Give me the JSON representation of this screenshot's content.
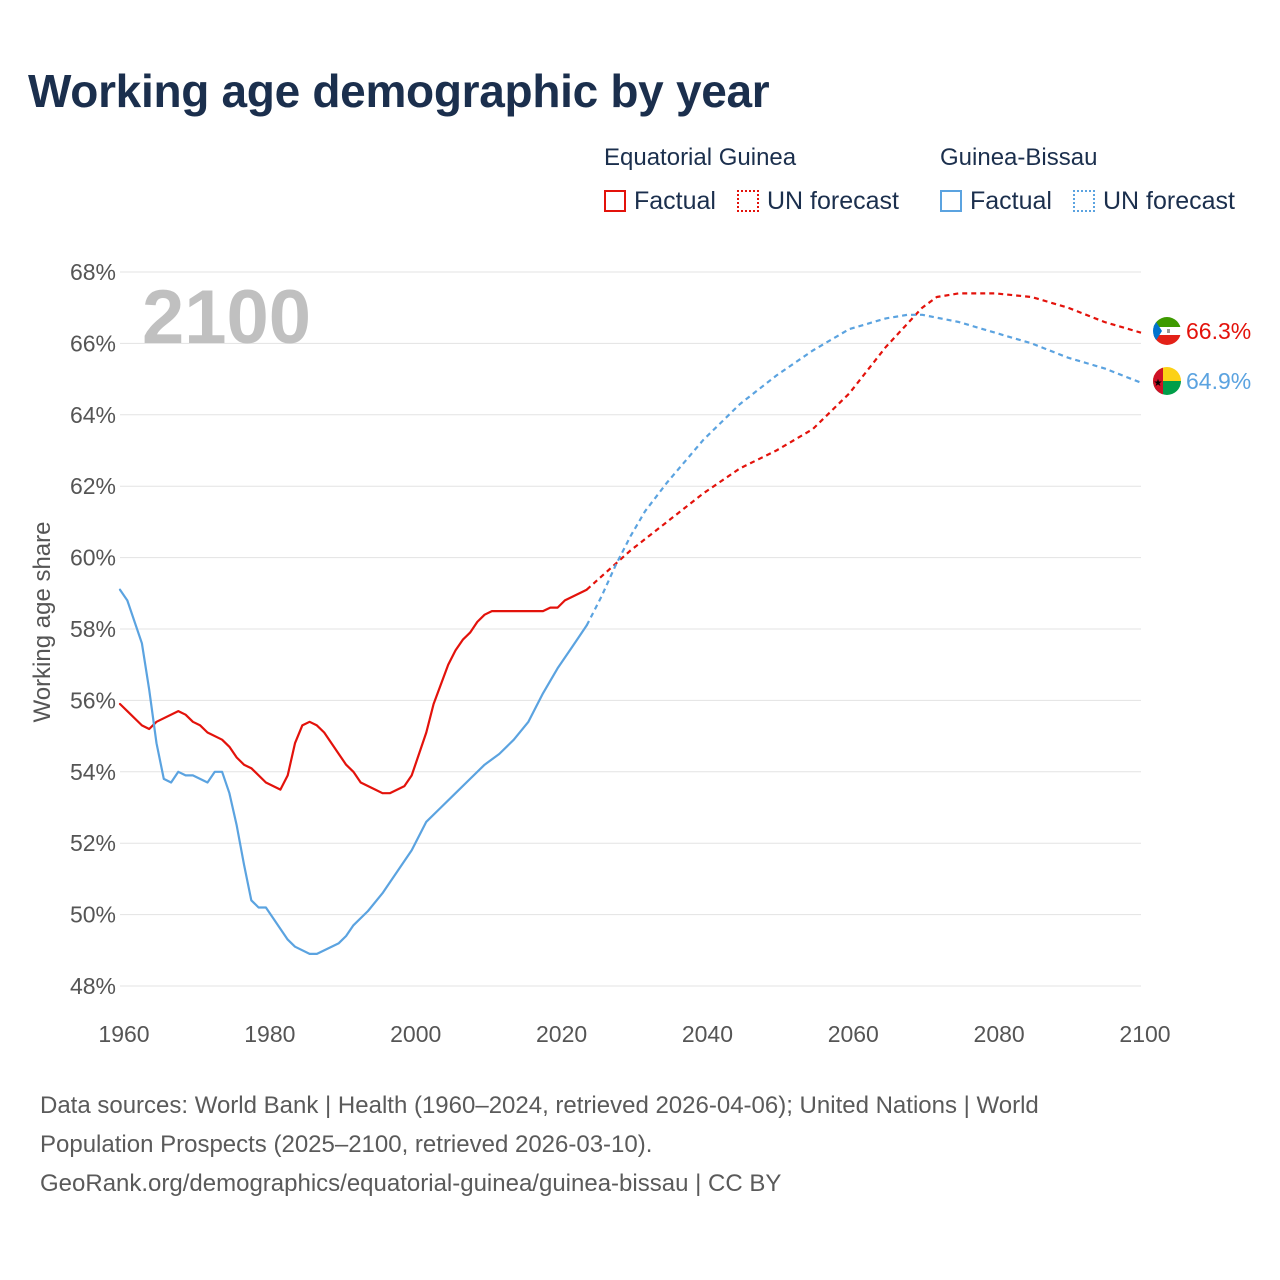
{
  "title": "Working age demographic by year",
  "legend": {
    "groups": [
      {
        "country": "Equatorial Guinea",
        "color": "#e3120b",
        "factual_label": "Factual",
        "forecast_label": "UN forecast"
      },
      {
        "country": "Guinea-Bissau",
        "color": "#5ba3e0",
        "factual_label": "Factual",
        "forecast_label": "UN forecast"
      }
    ]
  },
  "chart_data": {
    "type": "line",
    "title": "Working age demographic by year",
    "xlabel": "",
    "ylabel": "Working age share",
    "xlim": [
      1960,
      2100
    ],
    "ylim": [
      48,
      68
    ],
    "x_ticks": [
      1960,
      1980,
      2000,
      2020,
      2040,
      2060,
      2080,
      2100
    ],
    "x_tick_labels": [
      "1960",
      "1980",
      "2000",
      "2020",
      "2040",
      "2060",
      "2080",
      "2100"
    ],
    "y_ticks": [
      48,
      50,
      52,
      54,
      56,
      58,
      60,
      62,
      64,
      66,
      68
    ],
    "y_tick_labels": [
      "48%",
      "50%",
      "52%",
      "54%",
      "56%",
      "58%",
      "60%",
      "62%",
      "64%",
      "66%",
      "68%"
    ],
    "year_watermark": "2100",
    "grid": true,
    "series": [
      {
        "name": "Equatorial Guinea",
        "color": "#e3120b",
        "end_label": "66.3%",
        "factual": {
          "x": [
            1960,
            1963,
            1964,
            1965,
            1968,
            1969,
            1970,
            1971,
            1972,
            1974,
            1975,
            1976,
            1977,
            1978,
            1980,
            1982,
            1983,
            1984,
            1985,
            1986,
            1987,
            1988,
            1990,
            1991,
            1992,
            1993,
            1995,
            1996,
            1997,
            1999,
            2000,
            2002,
            2003,
            2005,
            2006,
            2007,
            2008,
            2009,
            2010,
            2011,
            2018,
            2019,
            2020,
            2021,
            2024
          ],
          "y": [
            55.9,
            55.3,
            55.2,
            55.4,
            55.7,
            55.6,
            55.4,
            55.3,
            55.1,
            54.9,
            54.7,
            54.4,
            54.2,
            54.1,
            53.7,
            53.5,
            53.9,
            54.8,
            55.3,
            55.4,
            55.3,
            55.1,
            54.5,
            54.2,
            54.0,
            53.7,
            53.5,
            53.4,
            53.4,
            53.6,
            53.9,
            55.1,
            55.9,
            57.0,
            57.4,
            57.7,
            57.9,
            58.2,
            58.4,
            58.5,
            58.5,
            58.6,
            58.6,
            58.8,
            59.1
          ]
        },
        "forecast": {
          "x": [
            2024,
            2030,
            2035,
            2040,
            2045,
            2050,
            2055,
            2060,
            2065,
            2070,
            2072,
            2075,
            2080,
            2085,
            2090,
            2095,
            2100
          ],
          "y": [
            59.1,
            60.2,
            61.0,
            61.8,
            62.5,
            63.0,
            63.6,
            64.6,
            65.9,
            67.0,
            67.3,
            67.4,
            67.4,
            67.3,
            67.0,
            66.6,
            66.3
          ]
        }
      },
      {
        "name": "Guinea-Bissau",
        "color": "#5ba3e0",
        "end_label": "64.9%",
        "factual": {
          "x": [
            1960,
            1961,
            1963,
            1964,
            1965,
            1966,
            1967,
            1968,
            1969,
            1970,
            1972,
            1973,
            1974,
            1975,
            1976,
            1977,
            1978,
            1979,
            1980,
            1982,
            1983,
            1984,
            1986,
            1987,
            1990,
            1991,
            1992,
            1994,
            1996,
            1998,
            2000,
            2002,
            2004,
            2006,
            2008,
            2010,
            2012,
            2014,
            2016,
            2018,
            2020,
            2022,
            2024
          ],
          "y": [
            59.1,
            58.8,
            57.6,
            56.3,
            54.8,
            53.8,
            53.7,
            54.0,
            53.9,
            53.9,
            53.7,
            54.0,
            54.0,
            53.4,
            52.5,
            51.4,
            50.4,
            50.2,
            50.2,
            49.6,
            49.3,
            49.1,
            48.9,
            48.9,
            49.2,
            49.4,
            49.7,
            50.1,
            50.6,
            51.2,
            51.8,
            52.6,
            53.0,
            53.4,
            53.8,
            54.2,
            54.5,
            54.9,
            55.4,
            56.2,
            56.9,
            57.5,
            58.1
          ]
        },
        "forecast": {
          "x": [
            2024,
            2026,
            2028,
            2030,
            2032,
            2035,
            2040,
            2045,
            2050,
            2055,
            2060,
            2065,
            2068,
            2070,
            2075,
            2080,
            2085,
            2090,
            2095,
            2100
          ],
          "y": [
            58.1,
            58.9,
            59.8,
            60.6,
            61.3,
            62.1,
            63.3,
            64.3,
            65.1,
            65.8,
            66.4,
            66.7,
            66.8,
            66.8,
            66.6,
            66.3,
            66.0,
            65.6,
            65.3,
            64.9
          ]
        }
      }
    ]
  },
  "sources": {
    "line1": "Data sources: World Bank | Health (1960–2024, retrieved 2026-04-06); United Nations | World",
    "line2": "Population Prospects (2025–2100, retrieved 2026-03-10).",
    "line3": "GeoRank.org/demographics/equatorial-guinea/guinea-bissau | CC BY"
  }
}
